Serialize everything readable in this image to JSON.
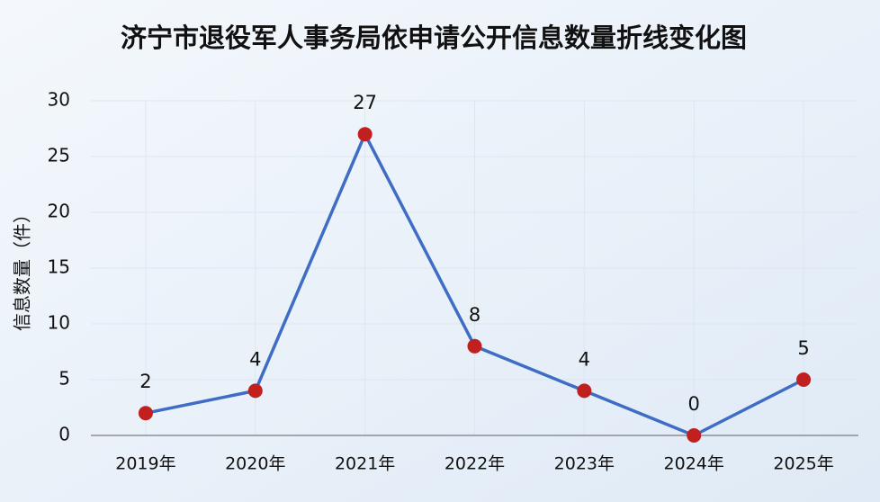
{
  "chart_data": {
    "type": "line",
    "title": "济宁市退役军人事务局依申请公开信息数量折线变化图",
    "y_label": "信息数量（件）",
    "categories": [
      "2019年",
      "2020年",
      "2021年",
      "2022年",
      "2023年",
      "2024年",
      "2025年"
    ],
    "series": [
      {
        "name": "信息数量",
        "color": "#3f6cc4",
        "marker_color": "#c0201e",
        "values": [
          2,
          4,
          27,
          8,
          4,
          0,
          5
        ]
      }
    ],
    "ylim": [
      0,
      30
    ],
    "yticks": [
      0,
      5,
      10,
      15,
      20,
      25,
      30
    ],
    "grid": true
  }
}
